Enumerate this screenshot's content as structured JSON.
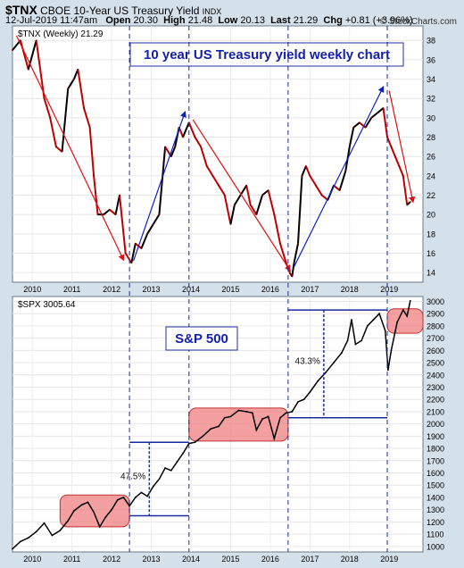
{
  "header": {
    "symbol": "$TNX",
    "name": "CBOE 10-Year US Treasury Yield",
    "exchange": "INDX",
    "datetime": "12-Jul-2019 11:47am",
    "open_label": "Open",
    "open": "20.30",
    "high_label": "High",
    "high": "21.48",
    "low_label": "Low",
    "low": "20.13",
    "last_label": "Last",
    "last": "21.29",
    "chg_label": "Chg",
    "chg": "+0.81 (+3.96%)",
    "credit": "© StockCharts.com"
  },
  "colors": {
    "background": "#d4e0ea",
    "panel": "#ffffff",
    "tnx_up": "#000000",
    "tnx_down": "#c00000",
    "down_arrow": "#e01010",
    "up_arrow": "#1020c0",
    "highlight": "#f08080",
    "vline": "#1a2aa0"
  },
  "chart_data": [
    {
      "type": "line",
      "legend": "$TNX (Weekly) 21.29",
      "title": "10 year US Treasury yield weekly chart",
      "ylim": [
        13,
        39.5
      ],
      "yticks": [
        14,
        16,
        18,
        20,
        22,
        24,
        26,
        28,
        30,
        32,
        34,
        36,
        38
      ],
      "xticks": [
        "2010",
        "2011",
        "2012",
        "2013",
        "2014",
        "2015",
        "2016",
        "2017",
        "2018",
        "2019"
      ],
      "x": [
        2009.5,
        2009.7,
        2009.9,
        2010.1,
        2010.3,
        2010.45,
        2010.6,
        2010.75,
        2010.9,
        2011.05,
        2011.15,
        2011.3,
        2011.45,
        2011.55,
        2011.65,
        2011.8,
        2011.95,
        2012.1,
        2012.2,
        2012.35,
        2012.5,
        2012.6,
        2012.75,
        2012.9,
        2013.05,
        2013.2,
        2013.35,
        2013.5,
        2013.6,
        2013.7,
        2013.8,
        2013.95,
        2014.1,
        2014.25,
        2014.4,
        2014.55,
        2014.7,
        2014.85,
        2015.0,
        2015.1,
        2015.25,
        2015.4,
        2015.5,
        2015.65,
        2015.8,
        2015.95,
        2016.1,
        2016.25,
        2016.4,
        2016.5,
        2016.55,
        2016.6,
        2016.7,
        2016.8,
        2016.9,
        2017.0,
        2017.15,
        2017.3,
        2017.45,
        2017.6,
        2017.75,
        2017.9,
        2018.0,
        2018.1,
        2018.25,
        2018.4,
        2018.55,
        2018.7,
        2018.85,
        2018.95,
        2019.05,
        2019.15,
        2019.25,
        2019.35,
        2019.45,
        2019.53
      ],
      "values": [
        37,
        38,
        35,
        38,
        32,
        30,
        27,
        26.5,
        33,
        34,
        35,
        31,
        29,
        24,
        20,
        20,
        20.5,
        20,
        22,
        16,
        15,
        17,
        16.5,
        18,
        19,
        20,
        27,
        26,
        27,
        29,
        28,
        29.5,
        28,
        27,
        25,
        24,
        23,
        22,
        19,
        21,
        22,
        23,
        21,
        20,
        22,
        22.5,
        20,
        17,
        15,
        13.9,
        13.6,
        15,
        17,
        24,
        25,
        24,
        23,
        22,
        21.5,
        23,
        22.5,
        24.5,
        27,
        29,
        29.5,
        29,
        30,
        30.5,
        31,
        28,
        27,
        26,
        25,
        24,
        21,
        21.3
      ],
      "annotations": [
        {
          "kind": "down-arrow",
          "from": [
            2009.6,
            38.5
          ],
          "to": [
            2012.3,
            15.3
          ]
        },
        {
          "kind": "up-arrow",
          "from": [
            2012.55,
            15.2
          ],
          "to": [
            2013.85,
            30.6
          ]
        },
        {
          "kind": "down-arrow",
          "from": [
            2014.05,
            29.8
          ],
          "to": [
            2016.5,
            14.2
          ]
        },
        {
          "kind": "up-arrow",
          "from": [
            2016.6,
            14.6
          ],
          "to": [
            2018.85,
            33.2
          ]
        },
        {
          "kind": "down-arrow",
          "from": [
            2019.0,
            32.8
          ],
          "to": [
            2019.6,
            21.3
          ]
        }
      ]
    },
    {
      "type": "line",
      "legend": "$SPX 3005.64",
      "title": "S&P 500",
      "ylim": [
        955,
        3040
      ],
      "yticks": [
        1000,
        1100,
        1200,
        1300,
        1400,
        1500,
        1600,
        1700,
        1800,
        1900,
        2000,
        2100,
        2200,
        2300,
        2400,
        2500,
        2600,
        2700,
        2800,
        2900,
        3000
      ],
      "xticks": [
        "2010",
        "2011",
        "2012",
        "2013",
        "2014",
        "2015",
        "2016",
        "2017",
        "2018",
        "2019"
      ],
      "x": [
        2009.5,
        2009.7,
        2009.9,
        2010.1,
        2010.3,
        2010.5,
        2010.7,
        2010.9,
        2011.05,
        2011.25,
        2011.4,
        2011.55,
        2011.7,
        2011.85,
        2012.0,
        2012.15,
        2012.3,
        2012.45,
        2012.6,
        2012.75,
        2012.9,
        2013.05,
        2013.2,
        2013.35,
        2013.5,
        2013.65,
        2013.8,
        2013.95,
        2014.1,
        2014.3,
        2014.5,
        2014.7,
        2014.85,
        2015.0,
        2015.2,
        2015.4,
        2015.55,
        2015.65,
        2015.8,
        2015.95,
        2016.1,
        2016.25,
        2016.4,
        2016.55,
        2016.7,
        2016.85,
        2017.0,
        2017.2,
        2017.4,
        2017.6,
        2017.8,
        2017.95,
        2018.05,
        2018.15,
        2018.3,
        2018.45,
        2018.6,
        2018.75,
        2018.9,
        2018.97,
        2019.05,
        2019.2,
        2019.35,
        2019.45,
        2019.53
      ],
      "values": [
        980,
        1040,
        1070,
        1120,
        1190,
        1090,
        1130,
        1210,
        1290,
        1340,
        1360,
        1280,
        1160,
        1240,
        1300,
        1380,
        1400,
        1330,
        1400,
        1440,
        1410,
        1490,
        1550,
        1640,
        1620,
        1690,
        1760,
        1840,
        1850,
        1900,
        1960,
        1980,
        2050,
        2060,
        2110,
        2100,
        2090,
        1950,
        2040,
        2060,
        1880,
        2050,
        2090,
        2100,
        2180,
        2200,
        2260,
        2350,
        2420,
        2500,
        2580,
        2680,
        2850,
        2650,
        2680,
        2800,
        2850,
        2900,
        2760,
        2440,
        2600,
        2830,
        2930,
        2880,
        3005
      ],
      "annotations": [
        {
          "kind": "highlight-box",
          "x": [
            2010.7,
            2012.45
          ],
          "y": [
            1160,
            1420
          ]
        },
        {
          "kind": "highlight-box",
          "x": [
            2013.95,
            2016.45
          ],
          "y": [
            1860,
            2130
          ]
        },
        {
          "kind": "highlight-box",
          "x": [
            2018.95,
            2019.85
          ],
          "y": [
            2740,
            2940
          ]
        },
        {
          "kind": "measure",
          "x": [
            2012.45,
            2013.95
          ],
          "y": [
            1250,
            1850
          ],
          "mid_x": 2012.95,
          "label": "47.5%"
        },
        {
          "kind": "measure",
          "x": [
            2016.45,
            2018.95
          ],
          "y": [
            2050,
            2930
          ],
          "mid_x": 2017.35,
          "label": "43.3%"
        }
      ],
      "vlines": [
        2012.45,
        2013.95,
        2016.45,
        2018.95
      ]
    }
  ]
}
